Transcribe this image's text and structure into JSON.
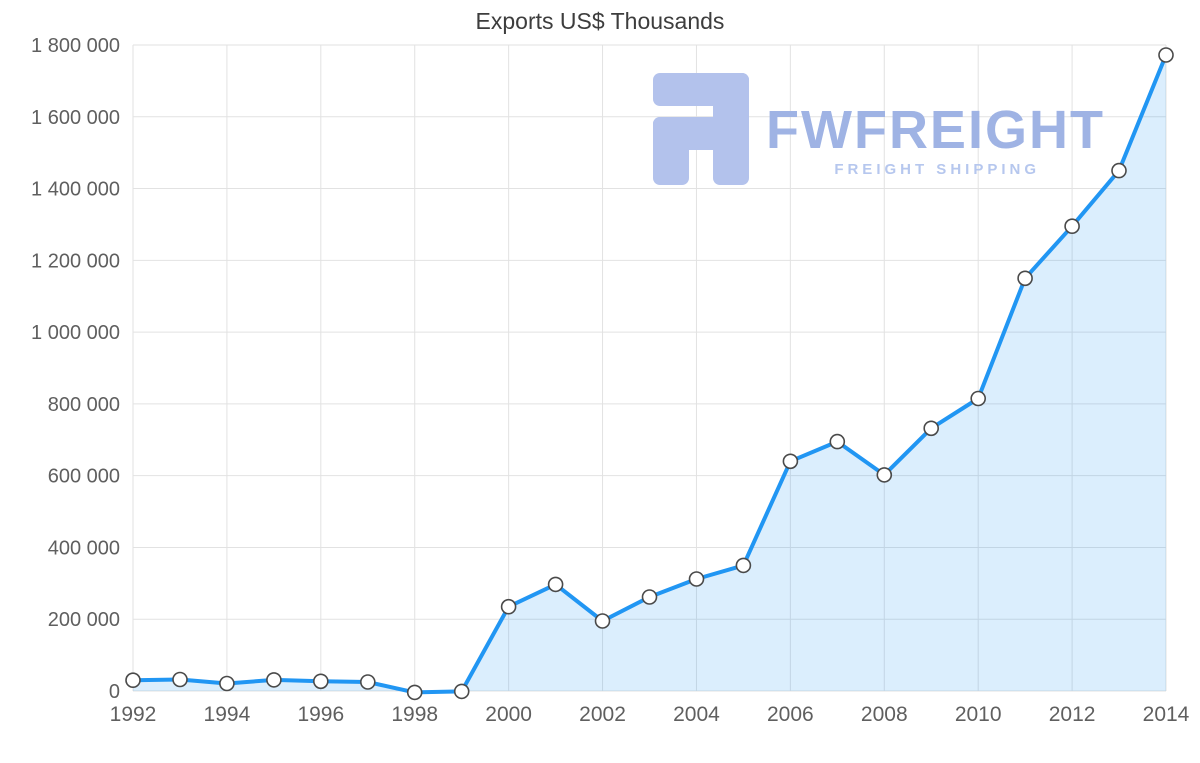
{
  "chart_data": {
    "type": "area",
    "title": "Exports US$ Thousands",
    "series_name": "Exports",
    "x": [
      1992,
      1993,
      1994,
      1995,
      1996,
      1997,
      1998,
      1999,
      2000,
      2001,
      2002,
      2003,
      2004,
      2005,
      2006,
      2007,
      2008,
      2009,
      2010,
      2011,
      2012,
      2013,
      2014
    ],
    "values": [
      30000,
      32000,
      21000,
      31000,
      27000,
      25000,
      -4000,
      -1000,
      235000,
      297000,
      195000,
      262000,
      312000,
      350000,
      640000,
      695000,
      602000,
      732000,
      815000,
      1150000,
      1295000,
      1450000,
      1772000
    ],
    "xlim": [
      1992,
      2014
    ],
    "ylim": [
      0,
      1800000
    ],
    "x_ticks": [
      1992,
      1994,
      1996,
      1998,
      2000,
      2002,
      2004,
      2006,
      2008,
      2010,
      2012,
      2014
    ],
    "x_tick_labels": [
      "1992",
      "1994",
      "1996",
      "1998",
      "2000",
      "2002",
      "2004",
      "2006",
      "2008",
      "2010",
      "2012",
      "2014"
    ],
    "y_ticks": [
      0,
      200000,
      400000,
      600000,
      800000,
      1000000,
      1200000,
      1400000,
      1600000,
      1800000
    ],
    "y_tick_labels": [
      "0",
      "200 000",
      "400 000",
      "600 000",
      "800 000",
      "1 000 000",
      "1 200 000",
      "1 400 000",
      "1 600 000",
      "1 800 000"
    ],
    "grid": true,
    "legend": "none",
    "colors": {
      "line": "#2196f3",
      "area": "rgba(33,150,243,0.16)",
      "marker_fill": "#ffffff",
      "marker_stroke": "#4a4a4a",
      "grid": "#e2e2e2",
      "axis_text": "#5f5f5f",
      "title_text": "#3d3d3d"
    }
  },
  "watermark": {
    "brand": "FWFREIGHT",
    "tagline": "FREIGHT SHIPPING",
    "logo_color": "#b3c2ec",
    "brand_color": "#9fb3e4",
    "tagline_color": "#b6c7ee"
  }
}
